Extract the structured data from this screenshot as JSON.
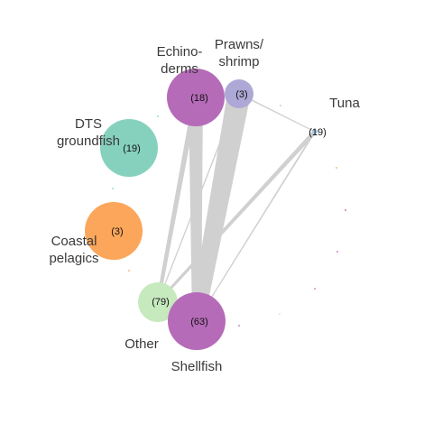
{
  "nodes": [
    {
      "id": "echinoderms",
      "label_lines": [
        "Echino-",
        "derms"
      ],
      "count_label": "(18)",
      "color": "#B56BB8"
    },
    {
      "id": "prawns",
      "label_lines": [
        "Prawns/",
        "shrimp"
      ],
      "count_label": "(3)",
      "color": "#ADA8D5"
    },
    {
      "id": "tuna",
      "label_lines": [
        "Tuna"
      ],
      "count_label": "(19)",
      "color": "#A9CCE8"
    },
    {
      "id": "dts",
      "label_lines": [
        "DTS",
        "groundfish"
      ],
      "count_label": "(19)",
      "color": "#86D1BE"
    },
    {
      "id": "coastal",
      "label_lines": [
        "Coastal",
        "pelagics"
      ],
      "count_label": "(3)",
      "color": "#FBA65A"
    },
    {
      "id": "other",
      "label_lines": [
        "Other"
      ],
      "count_label": "(79)",
      "color": "#C6E9BE"
    },
    {
      "id": "shellfish",
      "label_lines": [
        "Shellfish"
      ],
      "count_label": "(63)",
      "color": "#B56BB8"
    }
  ],
  "edges": [
    {
      "source": "prawns",
      "target": "shellfish",
      "weight": 8
    },
    {
      "source": "echinoderms",
      "target": "shellfish",
      "weight": 5
    },
    {
      "source": "echinoderms",
      "target": "other",
      "weight": 2
    },
    {
      "source": "tuna",
      "target": "other",
      "weight": 1.5
    },
    {
      "source": "tuna",
      "target": "shellfish",
      "weight": 0.6
    },
    {
      "source": "prawns",
      "target": "tuna",
      "weight": 0.5
    },
    {
      "source": "prawns",
      "target": "other",
      "weight": 0.5
    },
    {
      "source": "other",
      "target": "shellfish",
      "weight": 0.6
    }
  ],
  "colors": {
    "edge": "#D0D0D0",
    "label_text": "#3a3a3a",
    "count_text": "#111111"
  }
}
